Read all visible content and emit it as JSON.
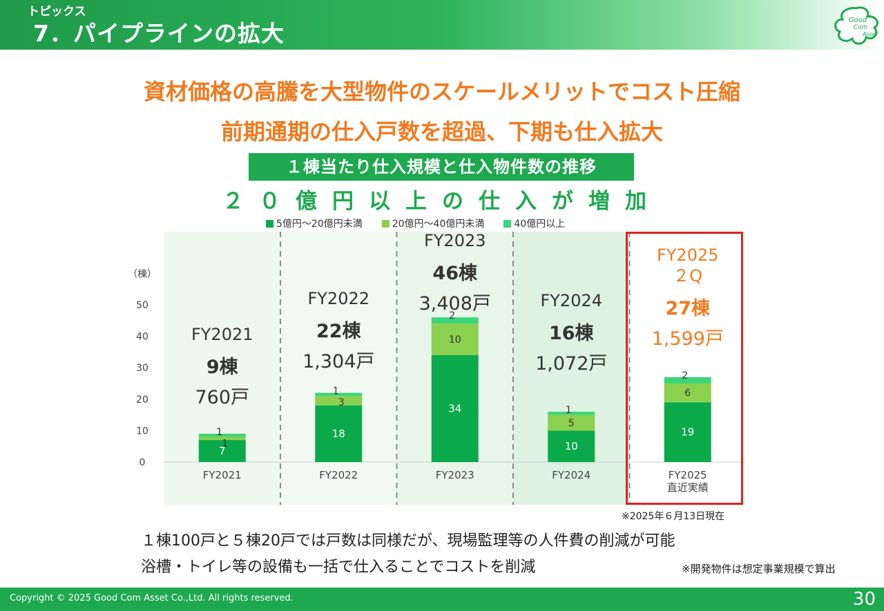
{
  "header": {
    "section": "トピックス",
    "title": "7．パイプラインの拡大",
    "logo_text": [
      "Good",
      "Com",
      "Asset"
    ]
  },
  "headline1": "資材価格の高騰を大型物件のスケールメリットでコスト圧縮",
  "headline2": "前期通期の仕入戸数を超過、下期も仕入拡大",
  "subtitle": "１棟当たり仕入規模と仕入物件数の推移",
  "spaced_caption": "２０億円以上の仕入が増加",
  "colors": {
    "green_dark": "#0aaa4a",
    "green_light": "#8cd04f",
    "green_top": "#3dd47a",
    "orange": "#f07a1e",
    "red": "#e02020"
  },
  "chart_data": {
    "type": "bar",
    "stacked": true,
    "ylabel": "（棟）",
    "ylim": [
      0,
      50
    ],
    "yticks": [
      0,
      10,
      20,
      30,
      40,
      50
    ],
    "grid": false,
    "legend_position": "top",
    "categories": [
      "FY2021",
      "FY2022",
      "FY2023",
      "FY2024",
      "FY2025\n直近実績"
    ],
    "series": [
      {
        "name": "5億円～20億円未満",
        "color": "#0aaa4a",
        "values": [
          7,
          18,
          34,
          10,
          19
        ]
      },
      {
        "name": "20億円～40億円未満",
        "color": "#8cd04f",
        "values": [
          1,
          3,
          10,
          5,
          6
        ]
      },
      {
        "name": "40億円以上",
        "color": "#3dd47a",
        "values": [
          1,
          1,
          2,
          1,
          2
        ]
      }
    ],
    "annotations": [
      {
        "label": "FY2021",
        "count": "9棟",
        "units": "760戸"
      },
      {
        "label": "FY2022",
        "count": "22棟",
        "units": "1,304戸"
      },
      {
        "label": "FY2023",
        "count": "46棟",
        "units": "3,408戸"
      },
      {
        "label": "FY2024",
        "count": "16棟",
        "units": "1,072戸"
      },
      {
        "label": "FY2025\n２Q",
        "count": "27棟",
        "units": "1,599戸",
        "highlight": true
      }
    ]
  },
  "note_date": "※2025年６月13日現在",
  "body_line1": "１棟100戸と５棟20戸では戸数は同様だが、現場監理等の人件費の削減が可能",
  "body_line2": "浴槽・トイレ等の設備も一括で仕入ることでコストを削減",
  "note_dev": "※開発物件は想定事業規模で算出",
  "footer": {
    "copyright": "Copyright © 2025 Good Com Asset Co.,Ltd. All rights reserved.",
    "page": "30"
  }
}
